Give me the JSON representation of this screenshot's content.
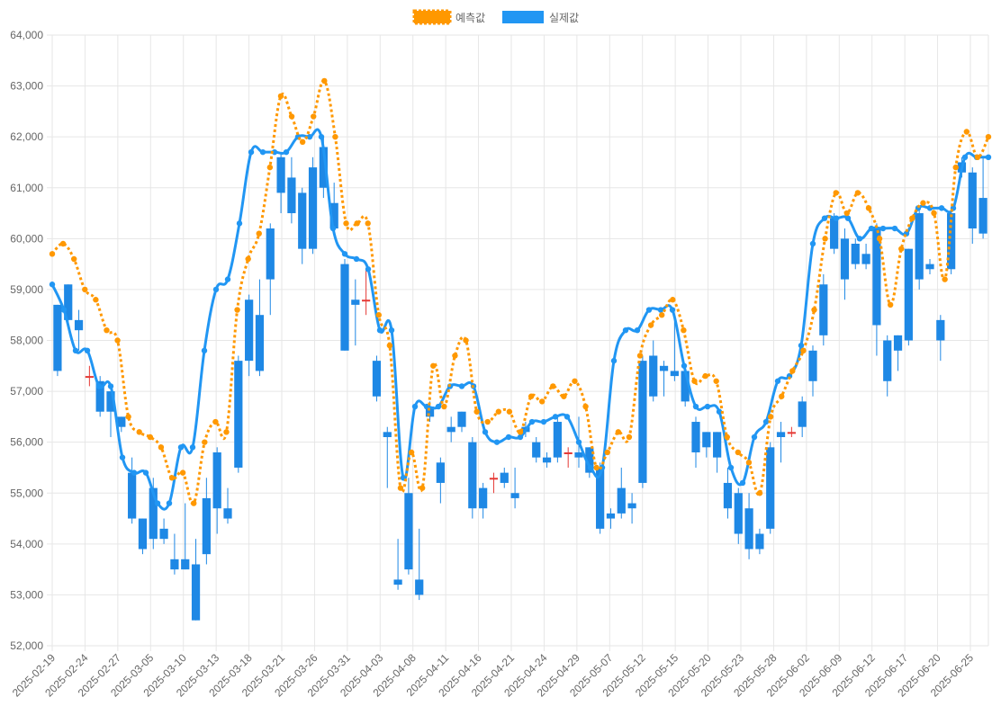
{
  "chart_data": {
    "type": "candlestick_line",
    "legend": {
      "position": "top-center",
      "items": [
        {
          "label": "예측값",
          "color": "#ff9800",
          "style": "dotted-line"
        },
        {
          "label": "실제값",
          "color": "#2196f3",
          "style": "solid-line"
        }
      ]
    },
    "y_axis": {
      "min": 52000,
      "max": 64000,
      "step": 1000,
      "ticks": [
        "52,000",
        "53,000",
        "54,000",
        "55,000",
        "56,000",
        "57,000",
        "58,000",
        "59,000",
        "60,000",
        "61,000",
        "62,000",
        "63,000",
        "64,000"
      ]
    },
    "grid": true,
    "x_tick_labels": [
      "2025-02-19",
      "2025-02-24",
      "2025-02-27",
      "2025-03-05",
      "2025-03-10",
      "2025-03-13",
      "2025-03-18",
      "2025-03-21",
      "2025-03-26",
      "2025-03-31",
      "2025-04-03",
      "2025-04-08",
      "2025-04-11",
      "2025-04-16",
      "2025-04-21",
      "2025-04-24",
      "2025-04-29",
      "2025-05-07",
      "2025-05-12",
      "2025-05-15",
      "2025-05-20",
      "2025-05-23",
      "2025-05-28",
      "2025-06-02",
      "2025-06-09",
      "2025-06-12",
      "2025-06-17",
      "2025-06-20",
      "2025-06-25"
    ],
    "candle_colors": {
      "up": "#e53935",
      "down": "#1e88e5"
    },
    "candles": [
      [
        58700,
        57400,
        58700,
        57300
      ],
      [
        59100,
        58400,
        59100,
        58300
      ],
      [
        58400,
        58200,
        58600,
        57800
      ],
      [
        57300,
        57300,
        57500,
        57100
      ],
      [
        57200,
        56600,
        57300,
        56500
      ],
      [
        57000,
        56600,
        57000,
        56100
      ],
      [
        56500,
        56300,
        56500,
        56200
      ],
      [
        55400,
        54500,
        55700,
        54400
      ],
      [
        54500,
        53900,
        54500,
        53800
      ],
      [
        55100,
        54100,
        55300,
        53900
      ],
      [
        54300,
        54100,
        54500,
        54000
      ],
      [
        53700,
        53500,
        54200,
        53400
      ],
      [
        53700,
        53500,
        54800,
        53500
      ],
      [
        53600,
        52500,
        54100,
        52500
      ],
      [
        54900,
        53800,
        55300,
        53600
      ],
      [
        55800,
        54700,
        55900,
        54200
      ],
      [
        54700,
        54500,
        55100,
        54400
      ],
      [
        57600,
        55500,
        57700,
        55400
      ],
      [
        58800,
        57600,
        58900,
        57300
      ],
      [
        58500,
        57400,
        59200,
        57300
      ],
      [
        60200,
        59200,
        60300,
        58500
      ],
      [
        61600,
        60900,
        61700,
        60500
      ],
      [
        61200,
        60500,
        61600,
        60300
      ],
      [
        60900,
        59800,
        61000,
        59500
      ],
      [
        61400,
        59800,
        61600,
        59700
      ],
      [
        61800,
        61000,
        62000,
        60800
      ],
      [
        60700,
        60200,
        61100,
        60100
      ],
      [
        59500,
        57800,
        59600,
        57800
      ],
      [
        58800,
        58700,
        59200,
        57900
      ],
      [
        58800,
        58800,
        59400,
        58500
      ],
      [
        57600,
        56900,
        57700,
        56800
      ],
      [
        56200,
        56100,
        56300,
        55100
      ],
      [
        53300,
        53200,
        54100,
        53100
      ],
      [
        55000,
        53500,
        55300,
        53400
      ],
      [
        53300,
        53000,
        54300,
        52900
      ],
      [
        56700,
        56500,
        56800,
        56400
      ],
      [
        55600,
        55200,
        55700,
        54800
      ],
      [
        56300,
        56200,
        56500,
        56000
      ],
      [
        56600,
        56300,
        56600,
        56200
      ],
      [
        56000,
        54700,
        56100,
        54500
      ],
      [
        55100,
        54700,
        55200,
        54500
      ],
      [
        55300,
        55300,
        55400,
        55000
      ],
      [
        55400,
        55200,
        55500,
        55100
      ],
      [
        55000,
        54900,
        55500,
        54700
      ],
      [
        56300,
        56200,
        56400,
        56100
      ],
      [
        56000,
        55700,
        56100,
        55600
      ],
      [
        55700,
        55600,
        55800,
        55500
      ],
      [
        56400,
        55700,
        56500,
        55600
      ],
      [
        55800,
        55800,
        55900,
        55500
      ],
      [
        55800,
        55700,
        56500,
        55500
      ],
      [
        55900,
        55400,
        55900,
        55300
      ],
      [
        55500,
        54300,
        55600,
        54200
      ],
      [
        54600,
        54500,
        54700,
        54300
      ],
      [
        55100,
        54600,
        55500,
        54500
      ],
      [
        54800,
        54700,
        55000,
        54400
      ],
      [
        57600,
        55200,
        57700,
        55100
      ],
      [
        57700,
        56900,
        58000,
        56800
      ],
      [
        57500,
        57400,
        57600,
        56900
      ],
      [
        57400,
        57300,
        58500,
        57200
      ],
      [
        57400,
        56800,
        57500,
        56700
      ],
      [
        56400,
        55800,
        56500,
        55500
      ],
      [
        56200,
        55900,
        56200,
        55700
      ],
      [
        56200,
        55700,
        56200,
        55400
      ],
      [
        55200,
        54700,
        55500,
        54500
      ],
      [
        55000,
        54200,
        55100,
        54000
      ],
      [
        54700,
        53900,
        55000,
        53700
      ],
      [
        54200,
        53900,
        54300,
        53800
      ],
      [
        55900,
        54300,
        56000,
        54200
      ],
      [
        56200,
        56100,
        56400,
        55600
      ],
      [
        56200,
        56200,
        56300,
        56100
      ],
      [
        56800,
        56300,
        56900,
        56100
      ],
      [
        57800,
        57200,
        57900,
        56900
      ],
      [
        59100,
        58100,
        59300,
        57900
      ],
      [
        60400,
        59800,
        60500,
        59700
      ],
      [
        60000,
        59200,
        60200,
        58800
      ],
      [
        59900,
        59500,
        60000,
        59400
      ],
      [
        59700,
        59500,
        59900,
        59400
      ],
      [
        60200,
        58300,
        60300,
        57700
      ],
      [
        58000,
        57200,
        58100,
        56900
      ],
      [
        58100,
        57800,
        58100,
        57400
      ],
      [
        59800,
        58000,
        59800,
        57900
      ],
      [
        60500,
        59200,
        60600,
        59000
      ],
      [
        59500,
        59400,
        59600,
        59300
      ],
      [
        58400,
        58000,
        58500,
        57600
      ],
      [
        60500,
        59400,
        60600,
        59300
      ],
      [
        61500,
        61300,
        61600,
        61200
      ],
      [
        61300,
        60200,
        61400,
        59900
      ],
      [
        60800,
        60100,
        61600,
        60000
      ]
    ],
    "actual_line": [
      59100,
      58600,
      57800,
      57800,
      57100,
      57100,
      55700,
      55400,
      55400,
      54800,
      54800,
      55900,
      55900,
      57800,
      59000,
      59200,
      60300,
      61700,
      61700,
      61700,
      61700,
      62000,
      62000,
      62000,
      60200,
      59700,
      59600,
      59400,
      58200,
      58200,
      55300,
      56700,
      56700,
      56700,
      57100,
      57100,
      57100,
      56200,
      56000,
      56100,
      56100,
      56400,
      56400,
      56500,
      56500,
      56000,
      55500,
      55500,
      57600,
      58200,
      58200,
      58600,
      58600,
      58600,
      57500,
      56700,
      56700,
      56600,
      55500,
      55200,
      56100,
      56400,
      57200,
      57300,
      57900,
      59900,
      60400,
      60400,
      60400,
      60000,
      60200,
      60200,
      60200,
      60100,
      60600,
      60600,
      60600,
      60600,
      61600,
      61600,
      61600
    ],
    "predicted_line": [
      59700,
      59900,
      59600,
      59000,
      58800,
      58200,
      58000,
      56500,
      56200,
      56100,
      55900,
      55300,
      55400,
      54800,
      56000,
      56400,
      56200,
      58600,
      59600,
      60100,
      61400,
      62800,
      62400,
      61900,
      62400,
      63100,
      62000,
      60300,
      60300,
      60300,
      58500,
      57900,
      55100,
      55800,
      55100,
      57500,
      56700,
      57700,
      58000,
      56600,
      56400,
      56600,
      56600,
      56200,
      56900,
      56800,
      57100,
      56900,
      57200,
      56700,
      55500,
      55800,
      56200,
      56100,
      57700,
      58300,
      58500,
      58800,
      58200,
      57200,
      57300,
      57200,
      56100,
      55800,
      55600,
      55000,
      56500,
      56900,
      57400,
      57800,
      58600,
      60000,
      60900,
      60500,
      60900,
      60600,
      60000,
      58700,
      59800,
      60400,
      60700,
      60500,
      59200,
      61400,
      62100,
      61600,
      62000
    ]
  }
}
